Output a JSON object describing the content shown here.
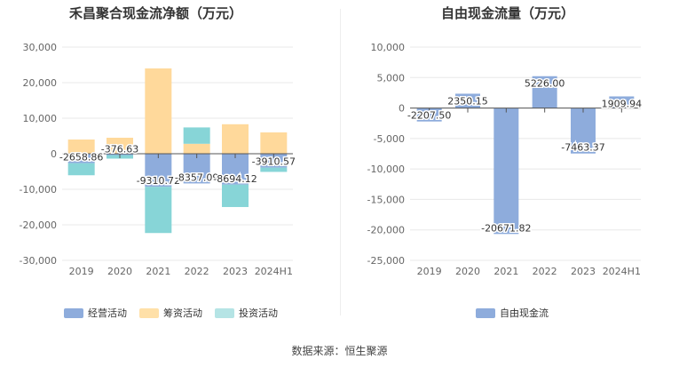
{
  "source_note": "数据来源：恒生聚源",
  "chart_data": [
    {
      "type": "bar",
      "stacked": true,
      "title": "禾昌聚合现金流净额（万元）",
      "categories": [
        "2019",
        "2020",
        "2021",
        "2022",
        "2023",
        "2024H1"
      ],
      "ylim": [
        -30000,
        30000
      ],
      "yticks": [
        30000,
        20000,
        10000,
        0,
        -10000,
        -20000,
        -30000
      ],
      "ytick_labels": [
        "30,000",
        "20,000",
        "10,000",
        "0",
        "-10,000",
        "-20,000",
        "-30,000"
      ],
      "grid": true,
      "legend_position": "bottom",
      "series": [
        {
          "name": "经营活动",
          "color": "#8eacdc",
          "values": [
            -2658.86,
            -376.63,
            -9310.72,
            -8357.09,
            -8694.12,
            -3910.57
          ]
        },
        {
          "name": "筹资活动",
          "color": "#ffd99b",
          "values": [
            4000,
            4500,
            24000,
            2800,
            8300,
            6000
          ]
        },
        {
          "name": "投资活动",
          "color": "#87d5d7",
          "values": [
            -3400,
            -1000,
            -13000,
            4600,
            -6300,
            -1200
          ]
        }
      ],
      "data_labels": [
        "-2658.86",
        "-376.63",
        "-9310.72",
        "-8357.09",
        "-8694.12",
        "-3910.57"
      ]
    },
    {
      "type": "bar",
      "title": "自由现金流量（万元）",
      "categories": [
        "2019",
        "2020",
        "2021",
        "2022",
        "2023",
        "2024H1"
      ],
      "ylim": [
        -25000,
        10000
      ],
      "yticks": [
        10000,
        5000,
        0,
        -5000,
        -10000,
        -15000,
        -20000,
        -25000
      ],
      "ytick_labels": [
        "10,000",
        "5,000",
        "0",
        "-5,000",
        "-10,000",
        "-15,000",
        "-20,000",
        "-25,000"
      ],
      "grid": true,
      "legend_position": "bottom",
      "series": [
        {
          "name": "自由现金流",
          "color": "#8eacdc",
          "values": [
            -2207.5,
            2350.15,
            -20671.82,
            5226.0,
            -7463.37,
            1909.94
          ]
        }
      ],
      "data_labels": [
        "-2207.50",
        "2350.15",
        "-20671.82",
        "5226.00",
        "-7463.37",
        "1909.94"
      ]
    }
  ]
}
